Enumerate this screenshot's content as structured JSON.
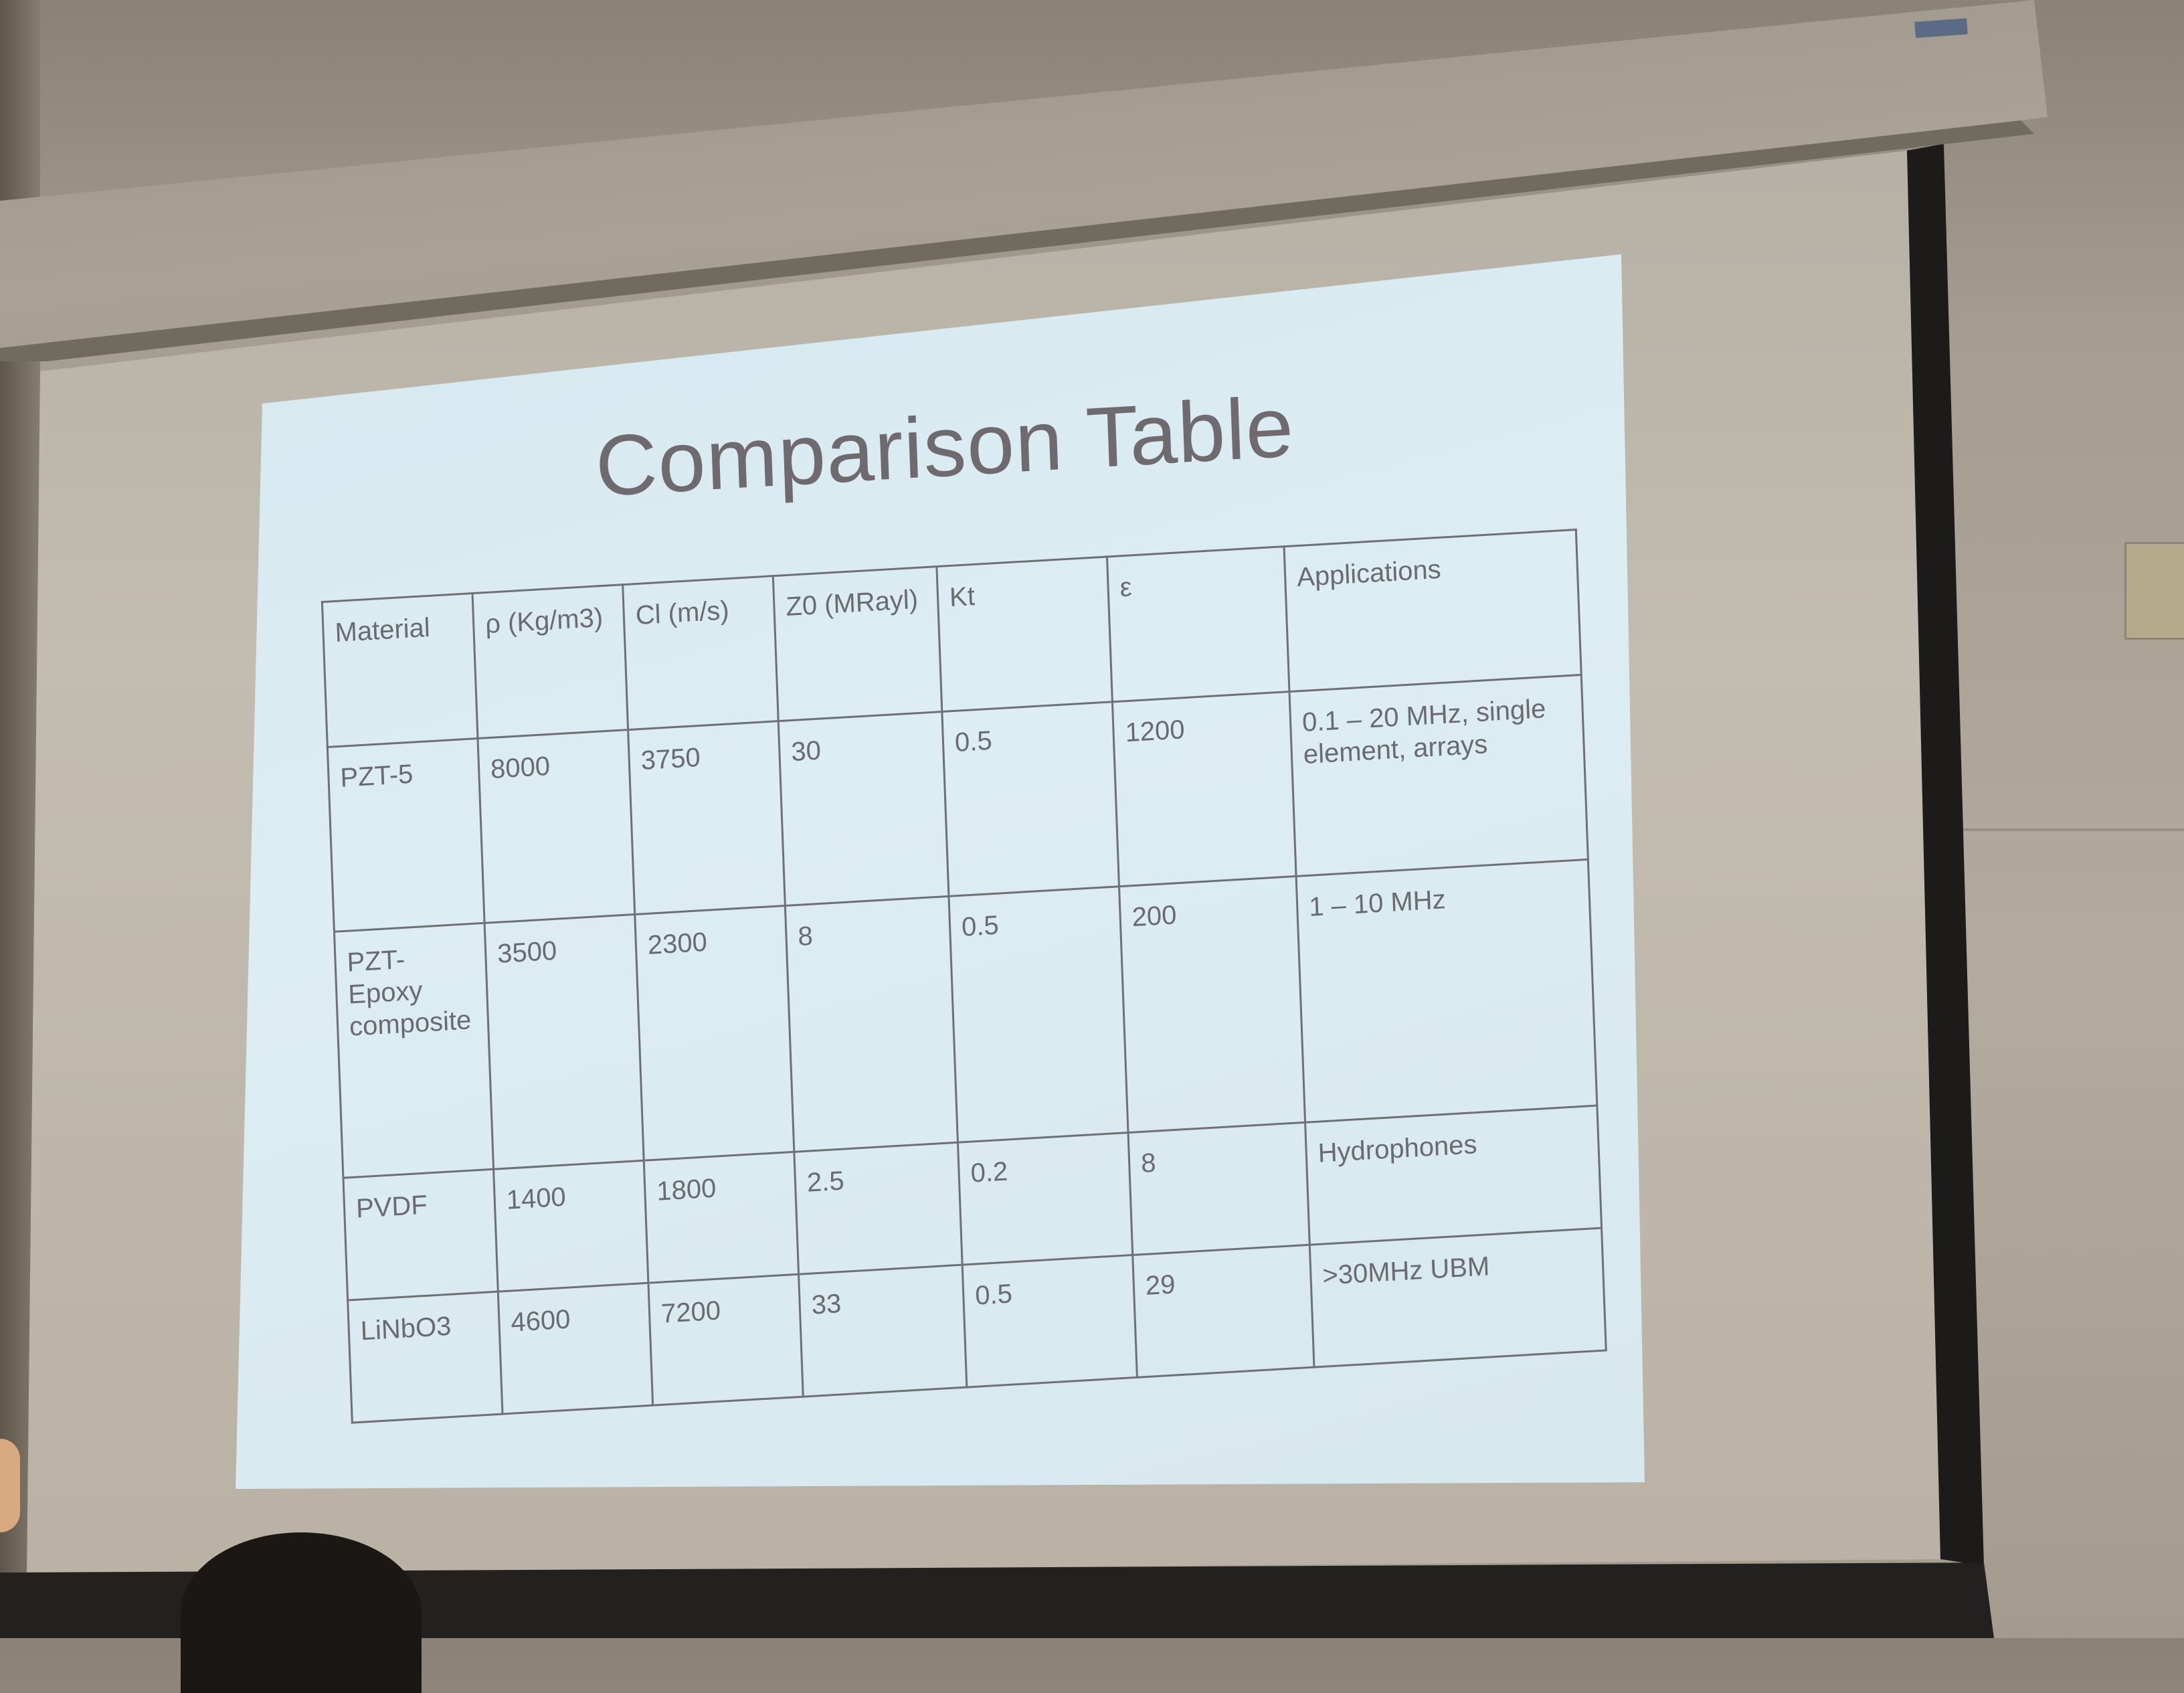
{
  "slide": {
    "title": "Comparison Table",
    "table": {
      "headers": [
        "Material",
        "ρ (Kg/m3)",
        "Cl (m/s)",
        "Z0 (MRayl)",
        "Kt",
        "ε",
        "Applications"
      ],
      "rows": [
        [
          "PZT-5",
          "8000",
          "3750",
          "30",
          "0.5",
          "1200",
          "0.1 – 20 MHz, single element, arrays"
        ],
        [
          "PZT-Epoxy composite",
          "3500",
          "2300",
          "8",
          "0.5",
          "200",
          "1 – 10 MHz"
        ],
        [
          "PVDF",
          "1400",
          "1800",
          "2.5",
          "0.2",
          "8",
          "Hydrophones"
        ],
        [
          "LiNbO3",
          "4600",
          "7200",
          "33",
          "0.5",
          "29",
          ">30MHz UBM"
        ]
      ]
    }
  }
}
